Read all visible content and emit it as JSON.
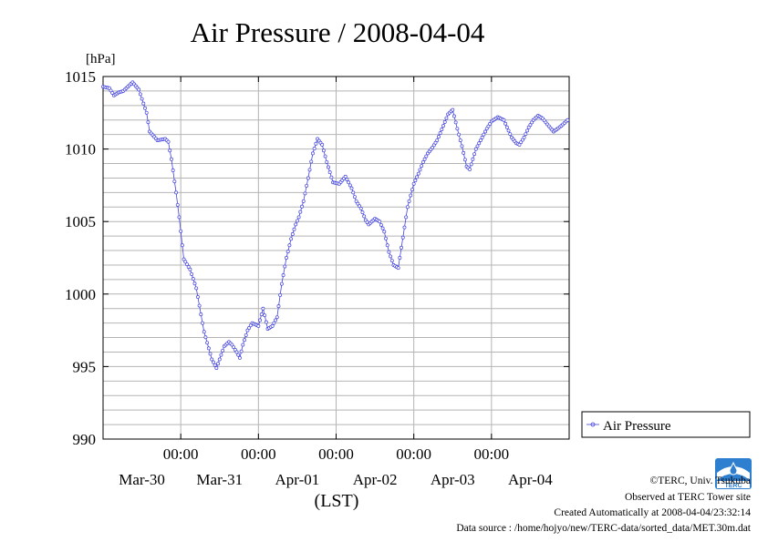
{
  "chart_data": {
    "type": "line",
    "title": "Air Pressure / 2008-04-04",
    "ylabel": "[hPa]",
    "xlabel": "(LST)",
    "ylim": [
      990,
      1015
    ],
    "yticks": [
      990,
      995,
      1000,
      1005,
      1010,
      1015
    ],
    "ytick_labels": [
      "990",
      "995",
      "1000",
      "1005",
      "1010",
      "1015"
    ],
    "xlim": [
      -1.0,
      5.0
    ],
    "xticks": [
      0,
      1,
      2,
      3,
      4
    ],
    "xtick_time_labels": [
      "00:00",
      "00:00",
      "00:00",
      "00:00",
      "00:00"
    ],
    "xtick_date_labels": [
      "Mar-30",
      "Mar-31",
      "Apr-01",
      "Apr-02",
      "Apr-03",
      "Apr-04"
    ],
    "x_unit": "days since 2008-03-30 00:00 LST",
    "grid": true,
    "legend_position": "right",
    "colors": {
      "series": "#4040e0",
      "grid": "#b4b4b4",
      "axis": "#000000"
    },
    "series": [
      {
        "name": "Air Pressure",
        "x": [
          -1.0,
          -0.92,
          -0.86,
          -0.8,
          -0.74,
          -0.68,
          -0.62,
          -0.54,
          -0.44,
          -0.4,
          -0.3,
          -0.2,
          -0.16,
          -0.12,
          -0.06,
          -0.02,
          0.04,
          0.12,
          0.2,
          0.3,
          0.4,
          0.46,
          0.52,
          0.56,
          0.62,
          0.66,
          0.72,
          0.76,
          0.8,
          0.86,
          0.92,
          1.0,
          1.06,
          1.12,
          1.18,
          1.24,
          1.3,
          1.36,
          1.42,
          1.48,
          1.52,
          1.58,
          1.64,
          1.7,
          1.76,
          1.82,
          1.88,
          1.96,
          2.04,
          2.12,
          2.2,
          2.26,
          2.32,
          2.38,
          2.42,
          2.5,
          2.56,
          2.62,
          2.68,
          2.74,
          2.8,
          2.86,
          2.92,
          3.0,
          3.06,
          3.12,
          3.18,
          3.24,
          3.3,
          3.38,
          3.44,
          3.5,
          3.56,
          3.62,
          3.68,
          3.72,
          3.8,
          3.86,
          3.94,
          4.0,
          4.08,
          4.16,
          4.2,
          4.26,
          4.32,
          4.36,
          4.42,
          4.48,
          4.54,
          4.6,
          4.66,
          4.72,
          4.8,
          4.9,
          4.98
        ],
        "values": [
          1014.3,
          1014.2,
          1013.7,
          1013.9,
          1014.0,
          1014.3,
          1014.6,
          1014.1,
          1012.5,
          1011.2,
          1010.6,
          1010.7,
          1010.5,
          1009.3,
          1007.0,
          1005.3,
          1002.4,
          1001.7,
          1000.4,
          997.4,
          995.5,
          994.9,
          995.8,
          996.4,
          996.7,
          996.5,
          996.0,
          995.6,
          996.5,
          997.5,
          998.0,
          997.8,
          999.0,
          997.6,
          997.8,
          998.4,
          1000.7,
          1002.5,
          1003.8,
          1004.8,
          1005.3,
          1006.4,
          1008.0,
          1009.7,
          1010.7,
          1010.3,
          1009.1,
          1007.7,
          1007.6,
          1008.1,
          1007.3,
          1006.4,
          1005.9,
          1005.1,
          1004.8,
          1005.2,
          1005.0,
          1004.3,
          1002.9,
          1002.0,
          1001.8,
          1003.9,
          1006.0,
          1007.6,
          1008.3,
          1009.1,
          1009.7,
          1010.1,
          1010.6,
          1011.6,
          1012.4,
          1012.7,
          1011.4,
          1010.2,
          1008.8,
          1008.6,
          1010.0,
          1010.6,
          1011.4,
          1011.9,
          1012.2,
          1012.0,
          1011.5,
          1010.8,
          1010.4,
          1010.3,
          1010.8,
          1011.5,
          1012.0,
          1012.3,
          1012.1,
          1011.7,
          1011.2,
          1011.6,
          1012.0
        ]
      }
    ]
  },
  "footer": {
    "copyright": "©TERC, Univ. Tsukuba",
    "observed": "Observed at TERC Tower site",
    "created": "Created Automatically at 2008-04-04/23:32:14",
    "source": "Data source : /home/hojyo/new/TERC-data/sorted_data/MET.30m.dat"
  },
  "logo": {
    "text": "TERC"
  }
}
